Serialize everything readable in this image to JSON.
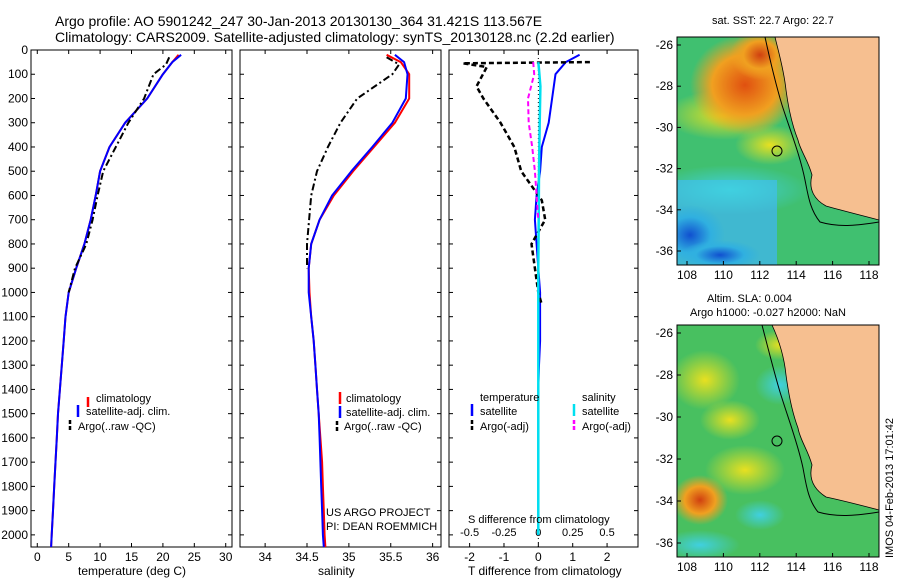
{
  "header": {
    "line1": "Argo profile: AO 5901242_247 30-Jan-2013 20130130_364 31.421S 113.567E",
    "line2": "Climatology: CARS2009. Satellite-adjusted climatology: synTS_20130128.nc (2.2d earlier)"
  },
  "colors": {
    "climatology": "#ff0000",
    "satellite": "#0000ff",
    "argo": "#000000",
    "sal_satellite": "#00e0f0",
    "sal_argo": "#ff00ff",
    "land": "#f6bf90",
    "contour": "#000000"
  },
  "chart_data": [
    {
      "type": "line",
      "id": "temperature",
      "xlabel": "temperature (deg C)",
      "xlim": [
        -1,
        31
      ],
      "ylim": [
        0,
        2050
      ],
      "y_reversed": true,
      "xticks": [
        0,
        5,
        10,
        15,
        20,
        25,
        30
      ],
      "yticks": [
        0,
        100,
        200,
        300,
        400,
        500,
        600,
        700,
        800,
        900,
        1000,
        1100,
        1200,
        1300,
        1400,
        1500,
        1600,
        1700,
        1800,
        1900,
        2000
      ],
      "legend": [
        "climatology",
        "satellite-adj. clim.",
        "Argo(..raw -QC)"
      ],
      "series": [
        {
          "name": "climatology",
          "style": "red",
          "x": [
            22.5,
            21.5,
            20.0,
            17.5,
            14.0,
            11.5,
            10.0,
            9.3,
            8.5,
            7.5,
            6.2,
            5.0,
            4.5,
            4.2,
            3.9,
            3.6,
            3.3,
            3.1,
            2.9,
            2.7,
            2.5,
            2.3,
            2.2
          ],
          "y": [
            20,
            50,
            100,
            200,
            300,
            400,
            500,
            600,
            700,
            800,
            900,
            1000,
            1100,
            1200,
            1300,
            1400,
            1500,
            1600,
            1700,
            1800,
            1900,
            2000,
            2050
          ]
        },
        {
          "name": "satellite-adj. clim.",
          "style": "blue",
          "x": [
            22.9,
            21.5,
            20.0,
            17.5,
            14.0,
            11.5,
            10.0,
            9.3,
            8.5,
            7.5,
            6.2,
            5.0,
            4.5,
            4.2,
            3.9,
            3.6,
            3.3,
            3.1,
            2.9,
            2.7,
            2.5,
            2.3,
            2.2
          ],
          "y": [
            20,
            50,
            100,
            200,
            300,
            400,
            500,
            600,
            700,
            800,
            900,
            1000,
            1100,
            1200,
            1300,
            1400,
            1500,
            1600,
            1700,
            1800,
            1900,
            2000,
            2050
          ]
        },
        {
          "name": "Argo(..raw -QC)",
          "style": "black-dashdot",
          "x": [
            21.0,
            20.5,
            18.5,
            17.0,
            14.5,
            12.5,
            10.5,
            9.6,
            8.8,
            7.8,
            6.0,
            5.0
          ],
          "y": [
            30,
            60,
            100,
            200,
            300,
            400,
            500,
            600,
            700,
            800,
            900,
            1000
          ]
        }
      ]
    },
    {
      "type": "line",
      "id": "salinity",
      "xlabel": "salinity",
      "xlim": [
        33.7,
        36.1
      ],
      "ylim": [
        0,
        2050
      ],
      "y_reversed": true,
      "xticks": [
        34,
        34.5,
        35,
        35.5,
        36
      ],
      "legend": [
        "climatology",
        "satellite-adj. clim.",
        "Argo(..raw -QC)"
      ],
      "annotations": [
        "US ARGO PROJECT",
        "PI: DEAN ROEMMICH"
      ],
      "series": [
        {
          "name": "climatology",
          "style": "red",
          "x": [
            35.45,
            35.62,
            35.72,
            35.72,
            35.55,
            35.3,
            35.05,
            34.82,
            34.65,
            34.55,
            34.52,
            34.53,
            34.55,
            34.58,
            34.6,
            34.62,
            34.64,
            34.66,
            34.68,
            34.69,
            34.7,
            34.71,
            34.72
          ],
          "y": [
            20,
            50,
            100,
            200,
            300,
            400,
            500,
            600,
            700,
            800,
            900,
            1000,
            1100,
            1200,
            1300,
            1400,
            1500,
            1600,
            1700,
            1800,
            1900,
            2000,
            2050
          ]
        },
        {
          "name": "satellite-adj. clim.",
          "style": "blue",
          "x": [
            35.55,
            35.66,
            35.7,
            35.68,
            35.52,
            35.28,
            35.03,
            34.8,
            34.65,
            34.55,
            34.52,
            34.52,
            34.55,
            34.58,
            34.6,
            34.62,
            34.64,
            34.65,
            34.66,
            34.67,
            34.68,
            34.69,
            34.7
          ],
          "y": [
            20,
            50,
            100,
            200,
            300,
            400,
            500,
            600,
            700,
            800,
            900,
            1000,
            1100,
            1200,
            1300,
            1400,
            1500,
            1600,
            1700,
            1800,
            1900,
            2000,
            2050
          ]
        },
        {
          "name": "Argo(..raw -QC)",
          "style": "black-dashdot",
          "x": [
            35.45,
            35.6,
            35.52,
            35.1,
            34.9,
            34.75,
            34.62,
            34.55,
            34.5,
            34.5
          ],
          "y": [
            30,
            60,
            100,
            200,
            300,
            400,
            500,
            600,
            800,
            900
          ]
        }
      ]
    },
    {
      "type": "line",
      "id": "difference",
      "xlabel_bottom": "T difference from climatology",
      "xlabel_top": "S difference from climatology",
      "xlim": [
        -2.6,
        2.9
      ],
      "ylim": [
        0,
        2050
      ],
      "y_reversed": true,
      "xticks": [
        -2,
        -1,
        0,
        1,
        2
      ],
      "xticks_top": [
        -0.5,
        -0.25,
        0,
        0.25,
        0.5
      ],
      "legend_temperature": {
        "title": "temperature",
        "items": [
          "satellite",
          "Argo(-adj)"
        ]
      },
      "legend_salinity": {
        "title": "salinity",
        "items": [
          "satellite",
          "Argo(-adj)"
        ]
      },
      "series": [
        {
          "name": "temperature satellite",
          "style": "blue",
          "x": [
            1.2,
            0.8,
            0.5,
            0.4,
            0.3,
            0.1,
            0.05,
            -0.05,
            -0.1,
            -0.05,
            0.0,
            0.05,
            0.05,
            0.05,
            0.02,
            0.0,
            0.0,
            0.0,
            0.0
          ],
          "y": [
            20,
            50,
            100,
            200,
            300,
            400,
            500,
            600,
            700,
            800,
            900,
            1000,
            1100,
            1200,
            1300,
            1400,
            1600,
            1800,
            2000
          ]
        },
        {
          "name": "temperature Argo(-adj)",
          "style": "black-dashed",
          "x": [
            1.5,
            -2.2,
            -1.5,
            -1.8,
            -1.6,
            -1.1,
            -0.7,
            -0.5,
            0.1,
            0.2,
            -0.2,
            -0.1,
            0.0,
            0.1
          ],
          "y": [
            50,
            55,
            70,
            150,
            200,
            300,
            400,
            500,
            620,
            700,
            800,
            900,
            1000,
            1050
          ]
        },
        {
          "name": "salinity satellite",
          "style": "cyan",
          "x": [
            0.0,
            0.02,
            0.06,
            0.04,
            0.02,
            0.01,
            0.0,
            0.0,
            0.0,
            0.0,
            0.0,
            0.0
          ],
          "y": [
            50,
            80,
            150,
            300,
            500,
            700,
            900,
            1100,
            1300,
            1500,
            1800,
            2000
          ]
        },
        {
          "name": "salinity Argo(-adj)",
          "style": "magenta-dashed",
          "x": [
            -0.15,
            -0.12,
            -0.3,
            -0.28,
            -0.18,
            -0.1,
            -0.05,
            0.0
          ],
          "y": [
            50,
            100,
            200,
            300,
            400,
            500,
            600,
            700
          ]
        }
      ]
    }
  ],
  "maps": {
    "top": {
      "title": "sat. SST: 22.7  Argo: 22.7",
      "xticks": [
        "108",
        "110",
        "112",
        "114",
        "116",
        "118"
      ],
      "yticks": [
        "-26",
        "-28",
        "-30",
        "-32",
        "-34",
        "-36"
      ]
    },
    "bottom": {
      "title1": "Altim. SLA: 0.004",
      "title2": "Argo h1000: -0.027 h2000: NaN",
      "xticks": [
        "108",
        "110",
        "112",
        "114",
        "116",
        "118"
      ],
      "yticks": [
        "-26",
        "-28",
        "-30",
        "-32",
        "-34",
        "-36"
      ]
    }
  },
  "footer": {
    "stamp": "IMOS 04-Feb-2013 17:01:42"
  }
}
